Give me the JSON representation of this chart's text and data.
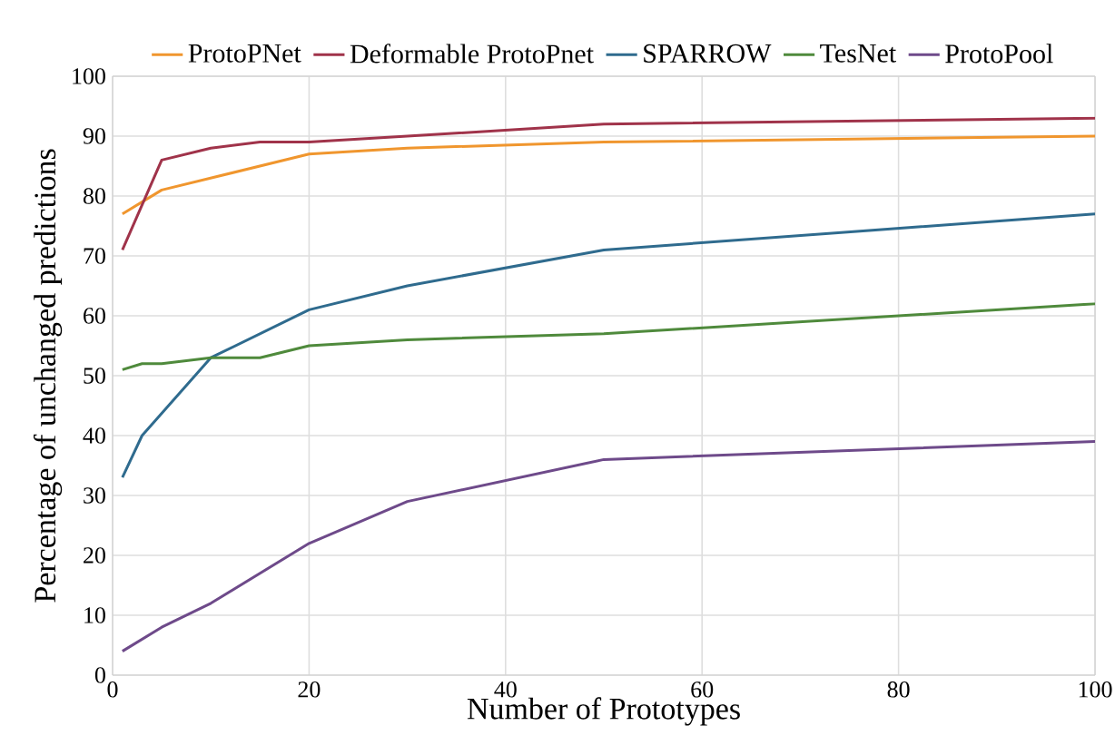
{
  "chart_data": {
    "type": "line",
    "xlabel": "Number of Prototypes",
    "ylabel": "Percentage of unchanged predictions",
    "xlim": [
      0,
      100
    ],
    "xticks": [
      0,
      20,
      40,
      60,
      80,
      100
    ],
    "ylim": [
      0,
      100
    ],
    "yticks": [
      0,
      10,
      20,
      30,
      40,
      50,
      60,
      70,
      80,
      90,
      100
    ],
    "grid": true,
    "legend": "top",
    "marker": "none",
    "line_style": "solid",
    "series": [
      {
        "name": "ProtoPNet",
        "color": "#f0962e",
        "x": [
          1,
          5,
          10,
          15,
          20,
          30,
          50,
          100
        ],
        "values": [
          77,
          81,
          83,
          85,
          87,
          88,
          89,
          90
        ]
      },
      {
        "name": "Deformable ProtoPnet",
        "color": "#a0334a",
        "x": [
          1,
          5,
          10,
          15,
          20,
          30,
          50,
          100
        ],
        "values": [
          71,
          86,
          88,
          89,
          89,
          90,
          92,
          93
        ]
      },
      {
        "name": "SPARROW",
        "color": "#2f6b8e",
        "x": [
          1,
          3,
          10,
          15,
          20,
          30,
          50,
          100
        ],
        "values": [
          33,
          40,
          53,
          57,
          61,
          65,
          71,
          77
        ]
      },
      {
        "name": "TesNet",
        "color": "#4f8a3c",
        "x": [
          1,
          3,
          5,
          10,
          15,
          20,
          30,
          50,
          100
        ],
        "values": [
          51,
          52,
          52,
          53,
          53,
          55,
          56,
          57,
          62
        ]
      },
      {
        "name": "ProtoPool",
        "color": "#6e4a8a",
        "x": [
          1,
          5,
          10,
          15,
          20,
          30,
          50,
          100
        ],
        "values": [
          4,
          8,
          12,
          17,
          22,
          29,
          36,
          39
        ]
      }
    ]
  }
}
